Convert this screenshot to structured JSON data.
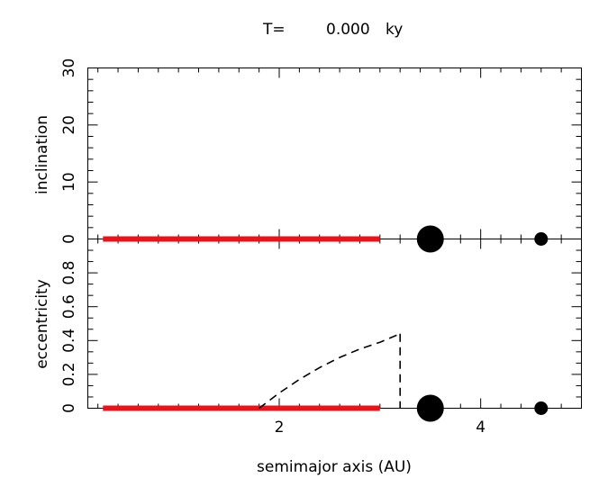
{
  "header": {
    "time_label": "T=",
    "time_value": "0.000",
    "time_unit": "ky"
  },
  "colors": {
    "particles": "#e8141c",
    "planets": "#000000",
    "axes": "#000000"
  },
  "chart_data": [
    {
      "panel": "top",
      "type": "scatter",
      "ylabel": "inclination",
      "xlim": [
        0.1,
        5.0
      ],
      "ylim": [
        0,
        30
      ],
      "y_ticks": [
        0,
        10,
        20,
        30
      ],
      "y_tick_labels": [
        "0",
        "10",
        "20",
        "30"
      ],
      "series": [
        {
          "kind": "particles",
          "x_range": [
            0.25,
            3.0
          ],
          "y": 0
        },
        {
          "kind": "planets",
          "points": [
            {
              "x": 3.5,
              "y": 0,
              "mass_rank": "large"
            },
            {
              "x": 4.6,
              "y": 0,
              "mass_rank": "small"
            }
          ]
        }
      ]
    },
    {
      "panel": "bottom",
      "type": "scatter",
      "ylabel": "eccentricity",
      "xlabel": "semimajor axis (AU)",
      "xlim": [
        0.1,
        5.0
      ],
      "ylim": [
        0,
        1.0
      ],
      "x_ticks": [
        2,
        4
      ],
      "x_tick_labels": [
        "2",
        "4"
      ],
      "y_ticks": [
        0,
        0.2,
        0.4,
        0.6,
        0.8
      ],
      "y_tick_labels": [
        "0",
        "0.2",
        "0.4",
        "0.6",
        "0.8"
      ],
      "series": [
        {
          "kind": "particles",
          "x_range": [
            0.25,
            3.0
          ],
          "y": 0
        },
        {
          "kind": "planets",
          "points": [
            {
              "x": 3.5,
              "y": 0,
              "mass_rank": "large"
            },
            {
              "x": 4.6,
              "y": 0,
              "mass_rank": "small"
            }
          ]
        },
        {
          "kind": "dashed-boundary",
          "x": [
            1.8,
            2.0,
            2.2,
            2.4,
            2.6,
            2.8,
            3.0,
            3.2
          ],
          "y": [
            0.0,
            0.09,
            0.17,
            0.24,
            0.3,
            0.35,
            0.39,
            0.44
          ],
          "drop_to_zero_at": 3.2
        }
      ]
    }
  ]
}
